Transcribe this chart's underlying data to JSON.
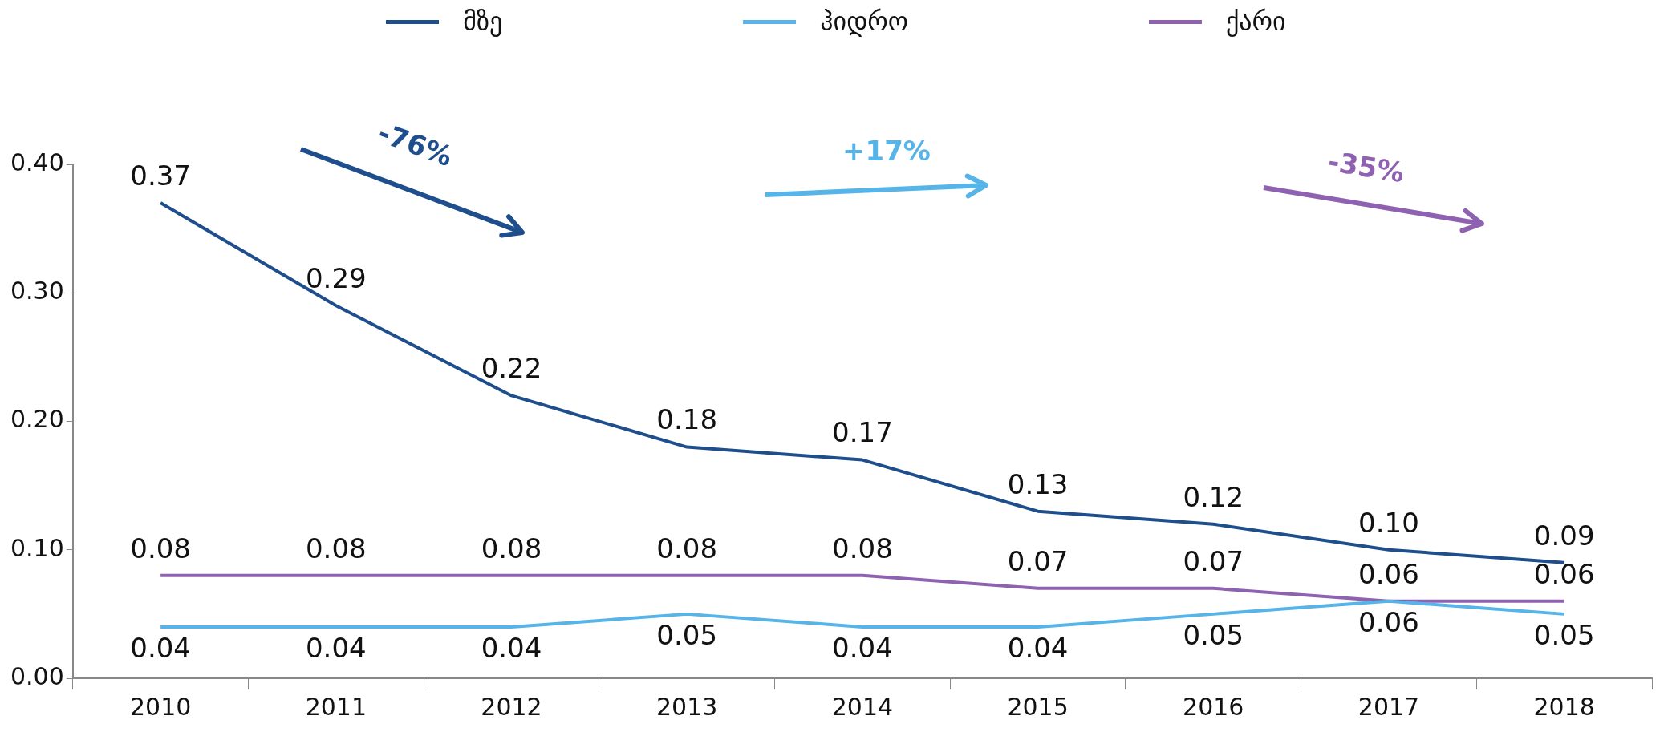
{
  "chart_data": {
    "type": "line",
    "categories": [
      "2010",
      "2011",
      "2012",
      "2013",
      "2014",
      "2015",
      "2016",
      "2017",
      "2018"
    ],
    "series": [
      {
        "name": "მზე",
        "color": "#1f4e8c",
        "values": [
          0.37,
          0.29,
          0.22,
          0.18,
          0.17,
          0.13,
          0.12,
          0.1,
          0.09
        ],
        "value_labels": [
          "0.37",
          "0.29",
          "0.22",
          "0.18",
          "0.17",
          "0.13",
          "0.12",
          "0.10",
          "0.09"
        ]
      },
      {
        "name": "ჰიდრო",
        "color": "#56b4e9",
        "values": [
          0.04,
          0.04,
          0.04,
          0.05,
          0.04,
          0.04,
          0.05,
          0.06,
          0.05
        ],
        "value_labels": [
          "0.04",
          "0.04",
          "0.04",
          "0.05",
          "0.04",
          "0.04",
          "0.05",
          "0.06",
          "0.05"
        ]
      },
      {
        "name": "ქარი",
        "color": "#8e62b0",
        "values": [
          0.08,
          0.08,
          0.08,
          0.08,
          0.08,
          0.07,
          0.07,
          0.06,
          0.06
        ],
        "value_labels": [
          "0.08",
          "0.08",
          "0.08",
          "0.08",
          "0.08",
          "0.07",
          "0.07",
          "0.06",
          "0.06"
        ]
      }
    ],
    "ylim": [
      0,
      0.4
    ],
    "yticks": [
      {
        "value": 0,
        "label": "0.00"
      },
      {
        "value": 0.1,
        "label": "0.10"
      },
      {
        "value": 0.2,
        "label": "0.20"
      },
      {
        "value": 0.3,
        "label": "0.30"
      },
      {
        "value": 0.4,
        "label": "0.40"
      }
    ],
    "annotations": [
      "-76%",
      "+17%",
      "-35%"
    ],
    "legend": "top",
    "grid": false,
    "marker": "none",
    "line_style": "solid"
  }
}
